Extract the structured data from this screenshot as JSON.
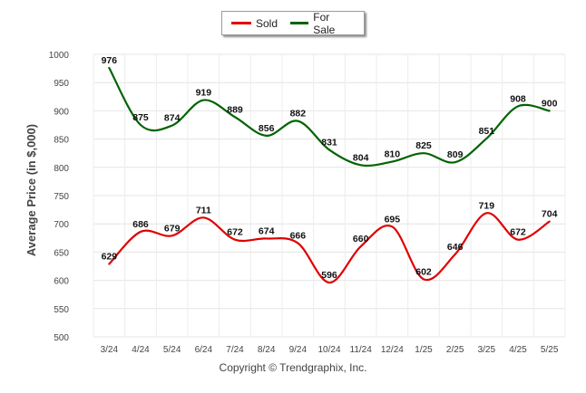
{
  "legend": {
    "sold": "Sold",
    "for_sale": "For Sale"
  },
  "copyright": "Copyright © Trendgraphix, Inc.",
  "chart_data": {
    "type": "line",
    "ylabel": "Average Price (in $,000)",
    "xlabel": "",
    "categories": [
      "3/24",
      "4/24",
      "5/24",
      "6/24",
      "7/24",
      "8/24",
      "9/24",
      "10/24",
      "11/24",
      "12/24",
      "1/25",
      "2/25",
      "3/25",
      "4/25",
      "5/25"
    ],
    "ylim": [
      500,
      1000
    ],
    "yticks": [
      500,
      550,
      600,
      650,
      700,
      750,
      800,
      850,
      900,
      950,
      1000
    ],
    "grid": true,
    "legend_position": "top-center",
    "series": [
      {
        "name": "Sold",
        "color": "#e00000",
        "values": [
          629,
          686,
          679,
          711,
          672,
          674,
          666,
          596,
          660,
          695,
          602,
          646,
          719,
          672,
          704
        ]
      },
      {
        "name": "For Sale",
        "color": "#006400",
        "values": [
          976,
          875,
          874,
          919,
          889,
          856,
          882,
          831,
          804,
          810,
          825,
          809,
          851,
          908,
          900
        ]
      }
    ]
  }
}
